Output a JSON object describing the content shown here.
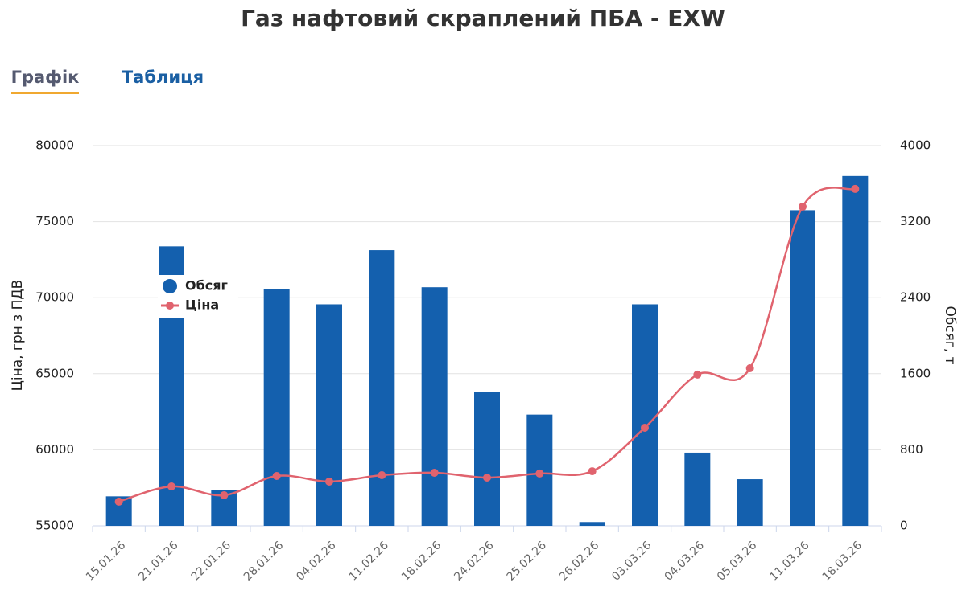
{
  "tabs": [
    "Графік",
    "Таблиця"
  ],
  "chart_data": {
    "type": "bar-line",
    "title": "Газ нафтовий скраплений ПБА - EXW",
    "categories": [
      "15.01.26",
      "21.01.26",
      "22.01.26",
      "28.01.26",
      "04.02.26",
      "11.02.26",
      "18.02.26",
      "24.02.26",
      "25.02.26",
      "26.02.26",
      "03.03.26",
      "04.03.26",
      "05.03.26",
      "11.03.26",
      "18.03.26"
    ],
    "series": [
      {
        "name": "Обсяг",
        "type": "bar",
        "axis": "y2",
        "color": "#1460ae",
        "values": [
          310,
          2940,
          380,
          2490,
          2330,
          2900,
          2510,
          1410,
          1170,
          40,
          2330,
          770,
          490,
          3320,
          3680
        ]
      },
      {
        "name": "Ціна",
        "type": "line",
        "color": "#e0636e",
        "values": [
          56590,
          57590,
          57010,
          58280,
          57910,
          58330,
          58490,
          58170,
          58440,
          58590,
          61450,
          64940,
          65360,
          75980,
          77150
        ]
      }
    ],
    "ylabel": "Ціна, грн з ПДВ",
    "y2label": "Обсяг, т",
    "ylim": [
      55000,
      80000
    ],
    "yticks": [
      55000,
      60000,
      65000,
      70000,
      75000,
      80000
    ],
    "y2lim": [
      0,
      4000
    ],
    "y2ticks": [
      0,
      800,
      1600,
      2400,
      3200,
      4000
    ],
    "grid": true
  }
}
